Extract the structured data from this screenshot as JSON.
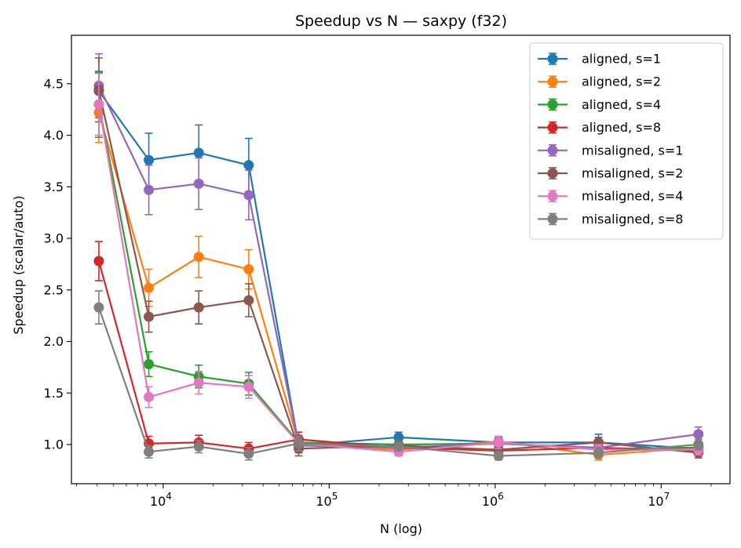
{
  "chart_data": {
    "type": "line",
    "title": "Speedup vs N — saxpy (f32)",
    "xlabel": "N (log)",
    "ylabel": "Speedup (scalar/auto)",
    "xscale": "log",
    "xlim": [
      2800,
      26000000
    ],
    "ylim": [
      0.62,
      4.97
    ],
    "grid": false,
    "legend_position": "top-right",
    "x": [
      4096,
      8192,
      16384,
      32768,
      65536,
      262144,
      1048576,
      4194304,
      16777216
    ],
    "x_tick_labels": [
      "10^4",
      "10^5",
      "10^6",
      "10^7"
    ],
    "y_ticks": [
      1.0,
      1.5,
      2.0,
      2.5,
      3.0,
      3.5,
      4.0,
      4.5
    ],
    "y_tick_labels": [
      "1.0",
      "1.5",
      "2.0",
      "2.5",
      "3.0",
      "3.5",
      "4.0",
      "4.5"
    ],
    "series": [
      {
        "name": "aligned, s=1",
        "color": "#1f77b4",
        "values": [
          4.43,
          3.76,
          3.83,
          3.71,
          0.99,
          1.07,
          1.02,
          1.02,
          0.96
        ],
        "errors": [
          0.18,
          0.26,
          0.27,
          0.26,
          0.07,
          0.05,
          0.05,
          0.08,
          0.05
        ]
      },
      {
        "name": "aligned, s=2",
        "color": "#ff7f0e",
        "values": [
          4.22,
          2.52,
          2.82,
          2.7,
          1.01,
          0.95,
          1.03,
          0.9,
          0.97
        ],
        "errors": [
          0.29,
          0.18,
          0.2,
          0.19,
          0.07,
          0.04,
          0.05,
          0.05,
          0.05
        ]
      },
      {
        "name": "aligned, s=4",
        "color": "#2ca02c",
        "values": [
          4.3,
          1.78,
          1.66,
          1.59,
          1.02,
          1.0,
          1.01,
          0.96,
          0.97
        ],
        "errors": [
          0.32,
          0.12,
          0.11,
          0.11,
          0.07,
          0.04,
          0.05,
          0.05,
          0.05
        ]
      },
      {
        "name": "aligned, s=8",
        "color": "#d62728",
        "values": [
          2.78,
          1.01,
          1.02,
          0.96,
          1.05,
          0.97,
          0.94,
          0.97,
          0.94
        ],
        "errors": [
          0.19,
          0.07,
          0.07,
          0.06,
          0.07,
          0.04,
          0.05,
          0.05,
          0.05
        ]
      },
      {
        "name": "misaligned, s=1",
        "color": "#9467bd",
        "values": [
          4.48,
          3.47,
          3.53,
          3.42,
          0.99,
          0.97,
          1.01,
          0.97,
          1.1
        ],
        "errors": [
          0.31,
          0.24,
          0.25,
          0.24,
          0.07,
          0.04,
          0.05,
          0.05,
          0.07
        ]
      },
      {
        "name": "misaligned, s=2",
        "color": "#8c564b",
        "values": [
          4.44,
          2.24,
          2.33,
          2.4,
          0.96,
          0.99,
          0.95,
          1.02,
          0.92
        ],
        "errors": [
          0.31,
          0.15,
          0.16,
          0.16,
          0.07,
          0.04,
          0.05,
          0.05,
          0.05
        ]
      },
      {
        "name": "misaligned, s=4",
        "color": "#e377c2",
        "values": [
          4.3,
          1.46,
          1.6,
          1.56,
          1.01,
          0.93,
          1.02,
          0.95,
          0.95
        ],
        "errors": [
          0.3,
          0.1,
          0.11,
          0.11,
          0.07,
          0.04,
          0.06,
          0.05,
          0.05
        ]
      },
      {
        "name": "misaligned, s=8",
        "color": "#7f7f7f",
        "values": [
          2.33,
          0.93,
          0.98,
          0.91,
          1.01,
          0.98,
          0.89,
          0.92,
          1.0
        ],
        "errors": [
          0.16,
          0.06,
          0.06,
          0.06,
          0.07,
          0.04,
          0.04,
          0.05,
          0.05
        ]
      }
    ]
  }
}
